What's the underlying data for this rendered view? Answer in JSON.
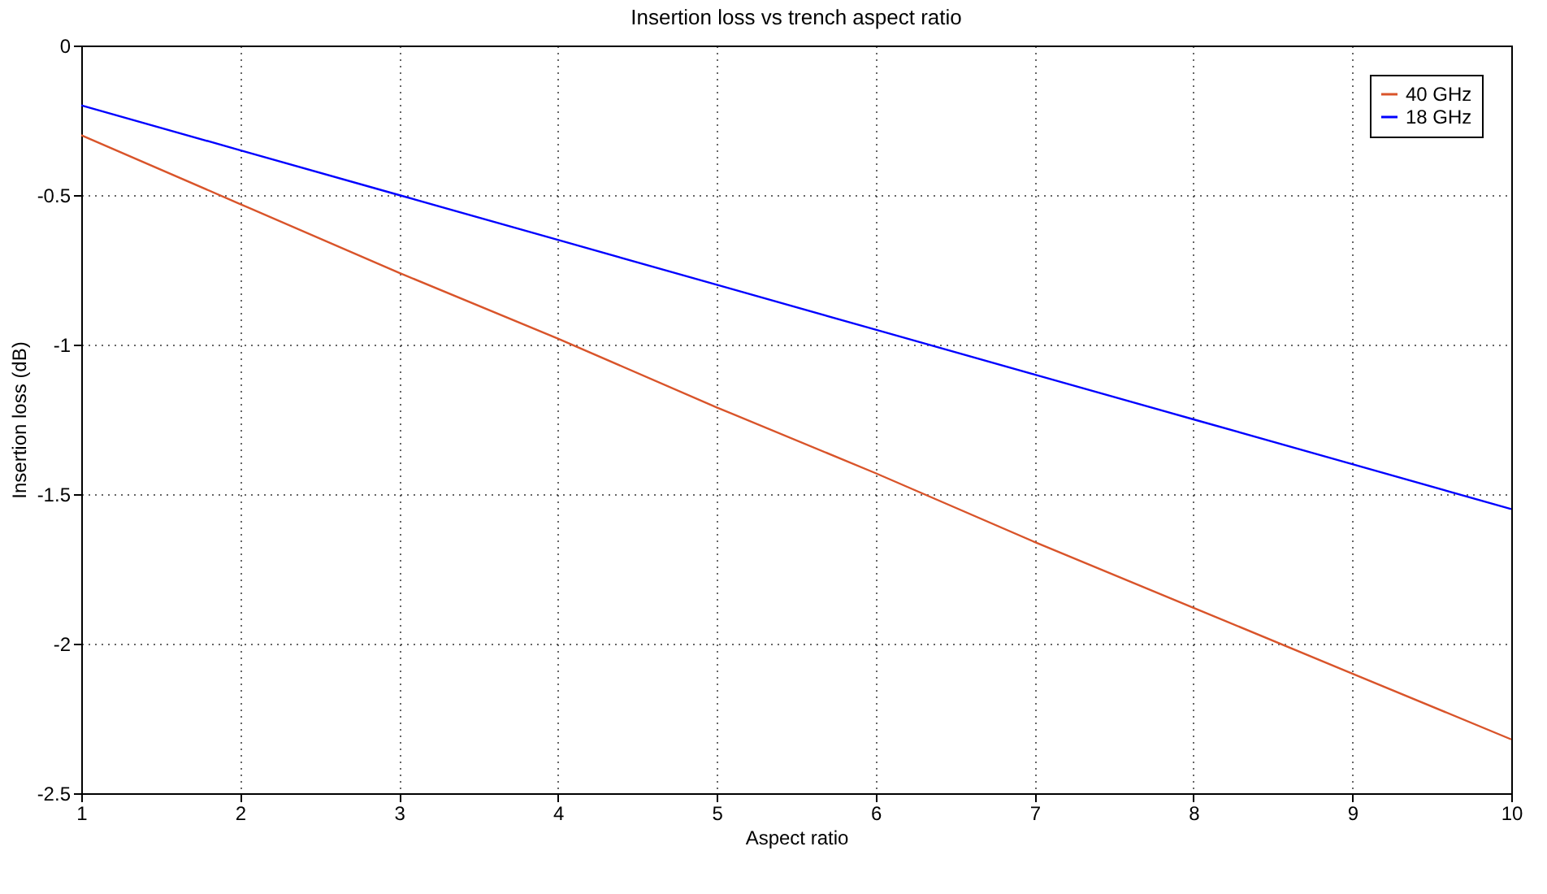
{
  "chart_data": {
    "type": "line",
    "title": "Insertion loss vs trench aspect ratio",
    "xlabel": "Aspect ratio",
    "ylabel": "Insertion loss (dB)",
    "x": [
      1,
      2,
      3,
      4,
      5,
      6,
      7,
      8,
      9,
      10
    ],
    "series": [
      {
        "name": "40 GHz",
        "color": "#d9542a",
        "values": [
          -0.3,
          -0.53,
          -0.76,
          -0.98,
          -1.21,
          -1.43,
          -1.66,
          -1.88,
          -2.1,
          -2.32
        ]
      },
      {
        "name": "18 GHz",
        "color": "#0000ff",
        "values": [
          -0.2,
          -0.35,
          -0.5,
          -0.65,
          -0.8,
          -0.95,
          -1.1,
          -1.25,
          -1.4,
          -1.55
        ]
      }
    ],
    "xlim": [
      1,
      10
    ],
    "ylim": [
      -2.5,
      0
    ],
    "xticks": [
      1,
      2,
      3,
      4,
      5,
      6,
      7,
      8,
      9,
      10
    ],
    "yticks": [
      -2.5,
      -2,
      -1.5,
      -1,
      -0.5,
      0
    ],
    "grid": true,
    "legend": "top right",
    "line_style": "solid",
    "marker": "none"
  }
}
